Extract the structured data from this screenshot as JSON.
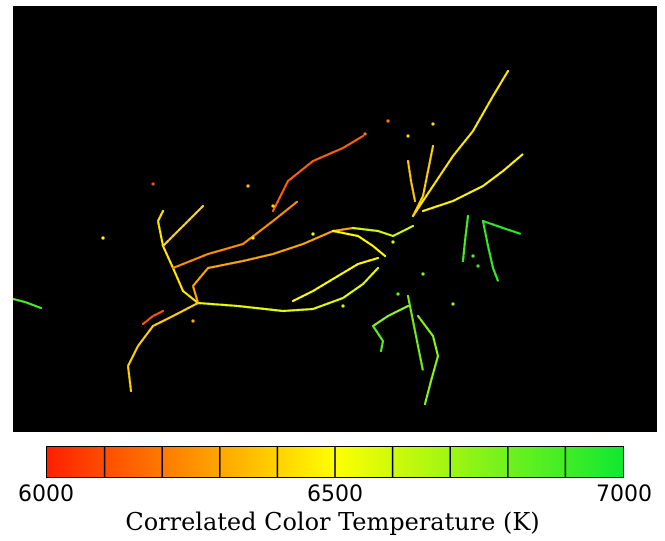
{
  "chart_data": {
    "type": "heatmap",
    "colorbar": {
      "title": "Correlated Color Temperature (K)",
      "range": [
        6000,
        7000
      ],
      "tick_labels": [
        "6000",
        "6500",
        "7000"
      ],
      "ticks": [
        6000,
        6500,
        7000
      ],
      "segments": 10,
      "color_low": "#ff2000",
      "color_mid": "#ffff00",
      "color_high": "#10e830"
    },
    "background": "#000000"
  }
}
